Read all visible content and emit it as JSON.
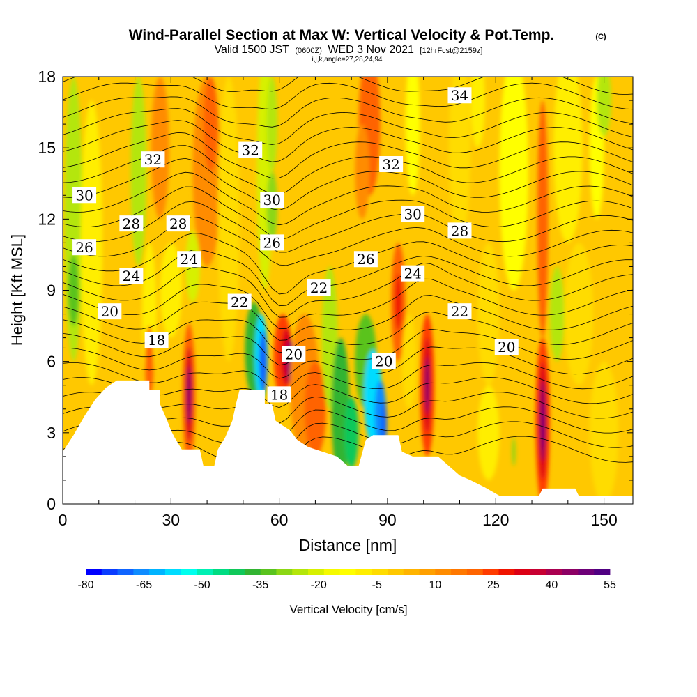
{
  "header": {
    "title": "Wind-Parallel Section at Max W: Vertical Velocity & Pot.Temp.",
    "copyright": "(C)",
    "valid_prefix": "Valid 1500 JST",
    "utc": "(0600Z)",
    "valid_date": "WED 3 Nov 2021",
    "forecast": "[12hrFcst@2159z]",
    "indices": "i,j,k,angle=27,28,24,94"
  },
  "chart_data": {
    "type": "heatmap",
    "xlabel": "Distance [nm]",
    "ylabel": "Height [Kft MSL]",
    "xlim": [
      0,
      158
    ],
    "ylim": [
      0,
      18
    ],
    "x_ticks": [
      0,
      30,
      60,
      90,
      120,
      150
    ],
    "y_ticks": [
      0,
      3,
      6,
      9,
      12,
      15,
      18
    ],
    "colorbar": {
      "label": "Vertical Velocity [cm/s]",
      "tick_labels": [
        "-80",
        "-65",
        "-50",
        "-35",
        "-20",
        "-5",
        "10",
        "25",
        "40",
        "55"
      ],
      "min": -80,
      "max": 55,
      "step": 5,
      "colors": [
        "#0000ff",
        "#0a3cff",
        "#0f64ff",
        "#0f8cff",
        "#00b4ff",
        "#00dcff",
        "#00ffee",
        "#00f0b4",
        "#00dc82",
        "#10c85a",
        "#32b432",
        "#5ac31e",
        "#8cd714",
        "#b4e60a",
        "#d7f000",
        "#f5fa00",
        "#ffff00",
        "#ffee00",
        "#ffdc00",
        "#ffc800",
        "#ffb400",
        "#ffa000",
        "#ff8c00",
        "#ff7800",
        "#ff6400",
        "#ff3c00",
        "#f01400",
        "#dc0014",
        "#c80032",
        "#aa0050",
        "#8c0064",
        "#6e0078",
        "#500082"
      ]
    },
    "theta_labels": [
      {
        "x": 25,
        "y": 14.5,
        "value": "32"
      },
      {
        "x": 52,
        "y": 14.9,
        "value": "32"
      },
      {
        "x": 91,
        "y": 14.3,
        "value": "32"
      },
      {
        "x": 110,
        "y": 17.2,
        "value": "34"
      },
      {
        "x": 6,
        "y": 13.0,
        "value": "30"
      },
      {
        "x": 58,
        "y": 12.8,
        "value": "30"
      },
      {
        "x": 97,
        "y": 12.2,
        "value": "30"
      },
      {
        "x": 19,
        "y": 11.8,
        "value": "28"
      },
      {
        "x": 32,
        "y": 11.8,
        "value": "28"
      },
      {
        "x": 110,
        "y": 11.5,
        "value": "28"
      },
      {
        "x": 6,
        "y": 10.8,
        "value": "26"
      },
      {
        "x": 58,
        "y": 11.0,
        "value": "26"
      },
      {
        "x": 84,
        "y": 10.3,
        "value": "26"
      },
      {
        "x": 19,
        "y": 9.6,
        "value": "24"
      },
      {
        "x": 35,
        "y": 10.3,
        "value": "24"
      },
      {
        "x": 97,
        "y": 9.7,
        "value": "24"
      },
      {
        "x": 49,
        "y": 8.5,
        "value": "22"
      },
      {
        "x": 71,
        "y": 9.1,
        "value": "22"
      },
      {
        "x": 110,
        "y": 8.1,
        "value": "22"
      },
      {
        "x": 13,
        "y": 8.1,
        "value": "20"
      },
      {
        "x": 64,
        "y": 6.3,
        "value": "20"
      },
      {
        "x": 89,
        "y": 6.0,
        "value": "20"
      },
      {
        "x": 123,
        "y": 6.6,
        "value": "20"
      },
      {
        "x": 26,
        "y": 6.9,
        "value": "18"
      },
      {
        "x": 60,
        "y": 4.6,
        "value": "18"
      }
    ],
    "terrain_kft": [
      [
        0,
        2.2
      ],
      [
        3,
        2.9
      ],
      [
        6,
        3.7
      ],
      [
        9,
        4.4
      ],
      [
        12,
        4.9
      ],
      [
        15,
        5.2
      ],
      [
        24,
        5.2
      ],
      [
        24,
        4.8
      ],
      [
        27,
        4.8
      ],
      [
        27,
        4.2
      ],
      [
        29,
        3.5
      ],
      [
        30,
        3.1
      ],
      [
        31,
        2.8
      ],
      [
        33,
        2.3
      ],
      [
        38,
        2.3
      ],
      [
        39,
        1.6
      ],
      [
        42,
        1.6
      ],
      [
        43,
        2.3
      ],
      [
        45,
        2.8
      ],
      [
        47,
        3.5
      ],
      [
        48,
        4.2
      ],
      [
        49,
        4.8
      ],
      [
        56,
        4.8
      ],
      [
        56,
        4.2
      ],
      [
        58,
        4.2
      ],
      [
        59,
        3.5
      ],
      [
        61,
        3.3
      ],
      [
        63,
        3.1
      ],
      [
        64,
        2.9
      ],
      [
        65,
        2.7
      ],
      [
        66,
        2.6
      ],
      [
        68,
        2.4
      ],
      [
        72,
        2.2
      ],
      [
        76,
        2.0
      ],
      [
        79,
        1.6
      ],
      [
        82,
        1.6
      ],
      [
        84,
        2.7
      ],
      [
        86,
        2.9
      ],
      [
        93,
        2.9
      ],
      [
        94,
        2.2
      ],
      [
        97,
        2.0
      ],
      [
        104,
        2.0
      ],
      [
        107,
        1.6
      ],
      [
        110,
        1.2
      ],
      [
        113,
        1.0
      ],
      [
        117,
        0.7
      ],
      [
        121,
        0.35
      ],
      [
        132,
        0.35
      ],
      [
        133,
        0.65
      ],
      [
        142,
        0.65
      ],
      [
        143,
        0.35
      ],
      [
        158,
        0.35
      ]
    ]
  }
}
